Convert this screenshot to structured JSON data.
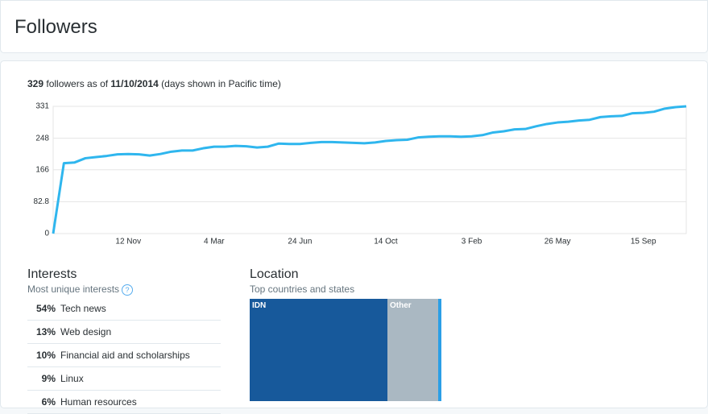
{
  "header": {
    "title": "Followers"
  },
  "summary": {
    "count": "329",
    "middle": "followers as of",
    "date": "11/10/2014",
    "note": "(days shown in Pacific time)"
  },
  "chart_data": {
    "type": "line",
    "categories": [
      null,
      null,
      null,
      null,
      null,
      null,
      null,
      "12 Nov",
      null,
      null,
      null,
      null,
      null,
      null,
      null,
      "4 Mar",
      null,
      null,
      null,
      null,
      null,
      null,
      null,
      "24 Jun",
      null,
      null,
      null,
      null,
      null,
      null,
      null,
      "14 Oct",
      null,
      null,
      null,
      null,
      null,
      null,
      null,
      "3 Feb",
      null,
      null,
      null,
      null,
      null,
      null,
      null,
      "26 May",
      null,
      null,
      null,
      null,
      null,
      null,
      null,
      "15 Sep",
      null,
      null,
      null,
      null
    ],
    "values": [
      0,
      183,
      185,
      196,
      199,
      202,
      206,
      207,
      206,
      203,
      207,
      213,
      216,
      216,
      222,
      226,
      226,
      228,
      227,
      224,
      226,
      234,
      233,
      233,
      236,
      238,
      238,
      237,
      236,
      235,
      237,
      241,
      243,
      244,
      250,
      252,
      253,
      253,
      252,
      253,
      256,
      263,
      266,
      271,
      272,
      279,
      285,
      289,
      291,
      294,
      296,
      303,
      305,
      306,
      313,
      314,
      317,
      325,
      329,
      331
    ],
    "color": "#2fb6ee",
    "ylim": [
      0,
      331
    ],
    "yticks": [
      0,
      82.8,
      166,
      248,
      331
    ],
    "grid": true
  },
  "interests": {
    "title": "Interests",
    "subtitle": "Most unique interests",
    "help": "?",
    "rows": [
      {
        "pct": "54%",
        "label": "Tech news"
      },
      {
        "pct": "13%",
        "label": "Web design"
      },
      {
        "pct": "10%",
        "label": "Financial aid and scholarships"
      },
      {
        "pct": "9%",
        "label": "Linux"
      },
      {
        "pct": "6%",
        "label": "Human resources"
      }
    ]
  },
  "location": {
    "title": "Location",
    "subtitle": "Top countries and states",
    "cells": [
      "IDN",
      "Other"
    ]
  }
}
